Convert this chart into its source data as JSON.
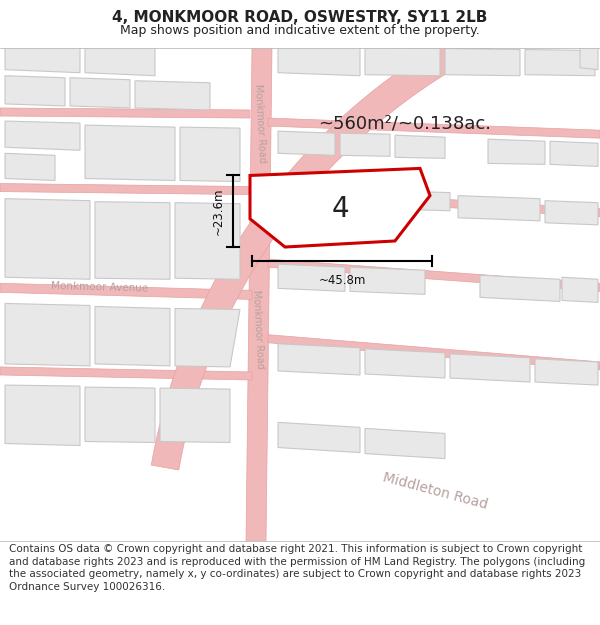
{
  "title": "4, MONKMOOR ROAD, OSWESTRY, SY11 2LB",
  "subtitle": "Map shows position and indicative extent of the property.",
  "footer": "Contains OS data © Crown copyright and database right 2021. This information is subject to Crown copyright and database rights 2023 and is reproduced with the permission of HM Land Registry. The polygons (including the associated geometry, namely x, y co-ordinates) are subject to Crown copyright and database rights 2023 Ordnance Survey 100026316.",
  "map_bg": "#ffffff",
  "title_color": "#222222",
  "footer_color": "#333333",
  "road_color": "#f0b8b8",
  "road_line_color": "#e8a0a0",
  "building_color": "#e8e8e8",
  "building_edge": "#c8c8c8",
  "road_label_color": "#b8a0a0",
  "highlight_color": "#cc0000",
  "highlight_fill": "#ffffff",
  "area_text": "~560m²/~0.138ac.",
  "number_text": "4",
  "dim_width": "~45.8m",
  "dim_height": "~23.6m",
  "title_fontsize": 11,
  "subtitle_fontsize": 9,
  "footer_fontsize": 7.5,
  "map_border_color": "#dddddd"
}
